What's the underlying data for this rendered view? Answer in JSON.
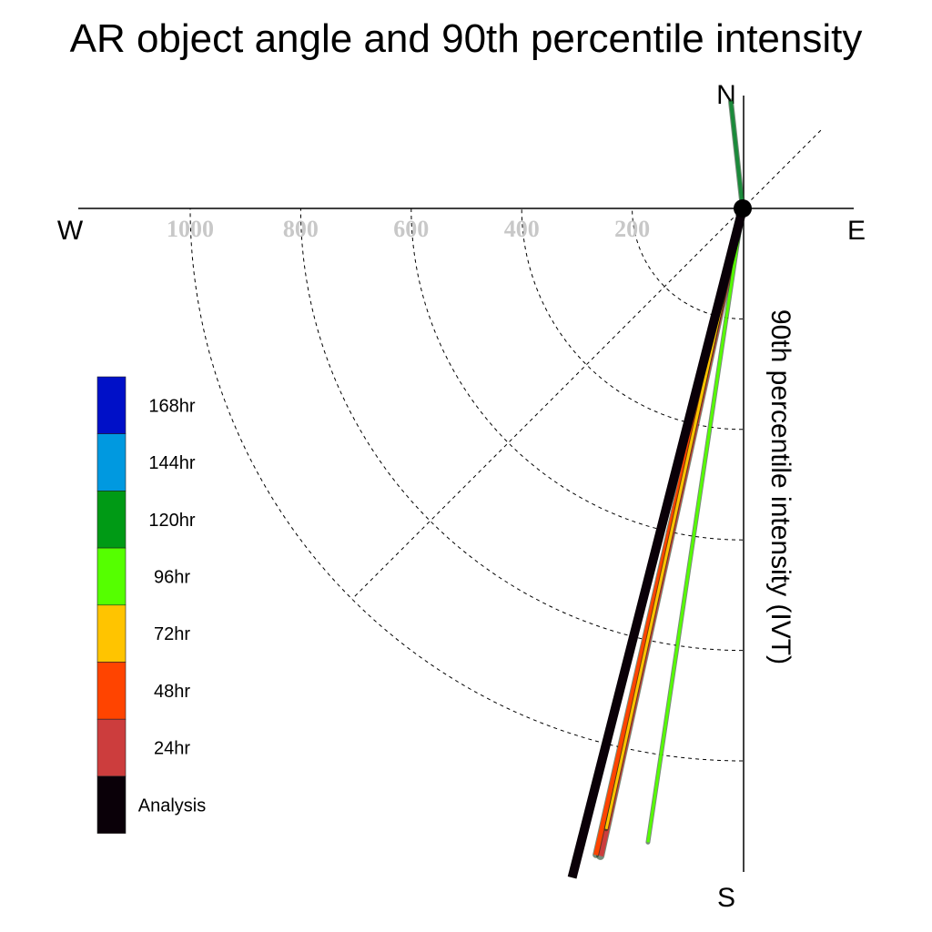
{
  "chart_data": {
    "type": "polar-line",
    "title": "AR object angle and 90th percentile intensity",
    "ylabel": "90th percentile intensity (IVT)",
    "compass": {
      "north": "N",
      "south": "S",
      "east": "E",
      "west": "W"
    },
    "radial_ticks": [
      200,
      400,
      600,
      800,
      1000
    ],
    "radial_tick_labels": [
      "200",
      "400",
      "600",
      "800",
      "1000"
    ],
    "rlim": [
      0,
      1200
    ],
    "angle_guides_deg": [
      45
    ],
    "legend": [
      {
        "label": "168hr",
        "color": "#0010c8"
      },
      {
        "label": "144hr",
        "color": "#0099e0"
      },
      {
        "label": "120hr",
        "color": "#009a15"
      },
      {
        "label": "96hr",
        "color": "#55ff00"
      },
      {
        "label": "72hr",
        "color": "#ffc400"
      },
      {
        "label": "48hr",
        "color": "#ff4400"
      },
      {
        "label": "24hr",
        "color": "#cc3d3d"
      },
      {
        "label": "Analysis",
        "color": "#0a0008"
      }
    ],
    "series": [
      {
        "name": "120hr",
        "color": "#1a8a3a",
        "angle_deg": -6.3,
        "intensity": 195,
        "width": 4
      },
      {
        "name": "24hr",
        "color": "#cc3d3d",
        "angle_deg": 192.4,
        "intensity": 1200,
        "width": 7
      },
      {
        "name": "48hr",
        "color": "#ff4400",
        "angle_deg": 192.8,
        "intensity": 1200,
        "width": 5
      },
      {
        "name": "72hr",
        "color": "#ffc400",
        "angle_deg": 192.4,
        "intensity": 1150,
        "width": 3
      },
      {
        "name": "96hr",
        "color": "#55ff00",
        "angle_deg": 188.5,
        "intensity": 1160,
        "width": 3
      },
      {
        "name": "Analysis",
        "color": "#0a0008",
        "angle_deg": 194.3,
        "intensity": 1250,
        "width": 10
      }
    ]
  }
}
